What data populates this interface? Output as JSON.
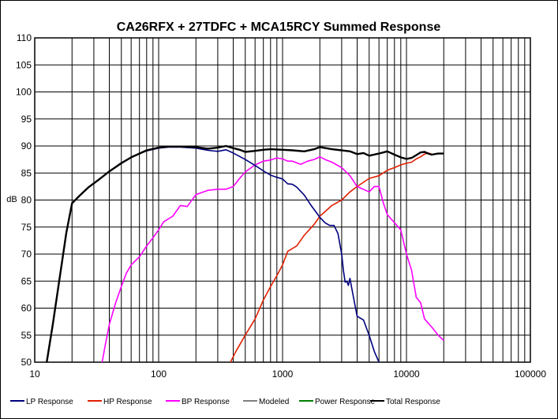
{
  "chart_data": {
    "type": "line",
    "title": "CA26RFX + 27TDFC + MCA15RCY  Summed Response",
    "xlabel": "",
    "ylabel": "dB",
    "xscale": "log",
    "xlim": [
      10,
      100000
    ],
    "ylim": [
      50,
      110
    ],
    "x_ticks": [
      10,
      100,
      1000,
      10000,
      100000
    ],
    "x_tick_labels": [
      "10",
      "100",
      "1000",
      "10000",
      "100000"
    ],
    "y_ticks": [
      50,
      55,
      60,
      65,
      70,
      75,
      80,
      85,
      90,
      95,
      100,
      105,
      110
    ],
    "grid": true,
    "legend_position": "bottom",
    "series": [
      {
        "name": "LP Response",
        "color": "#000080",
        "points": [
          [
            12.5,
            50
          ],
          [
            14,
            57
          ],
          [
            16,
            66
          ],
          [
            18,
            74
          ],
          [
            20,
            79.4
          ],
          [
            23,
            80.8
          ],
          [
            27,
            82.3
          ],
          [
            33,
            83.8
          ],
          [
            40,
            85.3
          ],
          [
            50,
            86.9
          ],
          [
            60,
            87.9
          ],
          [
            70,
            88.6
          ],
          [
            80,
            89.1
          ],
          [
            100,
            89.6
          ],
          [
            120,
            89.8
          ],
          [
            150,
            89.8
          ],
          [
            200,
            89.6
          ],
          [
            250,
            89.2
          ],
          [
            300,
            89.0
          ],
          [
            350,
            89.3
          ],
          [
            400,
            88.7
          ],
          [
            500,
            87.5
          ],
          [
            600,
            86.4
          ],
          [
            700,
            85.4
          ],
          [
            800,
            84.6
          ],
          [
            900,
            84.2
          ],
          [
            1000,
            83.9
          ],
          [
            1100,
            83.0
          ],
          [
            1200,
            82.9
          ],
          [
            1300,
            82.4
          ],
          [
            1500,
            80.9
          ],
          [
            1700,
            79.0
          ],
          [
            2000,
            76.8
          ],
          [
            2200,
            75.8
          ],
          [
            2400,
            75.3
          ],
          [
            2600,
            75.3
          ],
          [
            2800,
            73.8
          ],
          [
            3000,
            70.0
          ],
          [
            3100,
            67.0
          ],
          [
            3200,
            64.8
          ],
          [
            3300,
            65.0
          ],
          [
            3400,
            64.2
          ],
          [
            3500,
            65.5
          ],
          [
            3700,
            62.5
          ],
          [
            4000,
            58.5
          ],
          [
            4500,
            57.8
          ],
          [
            5000,
            55.0
          ],
          [
            5500,
            52.0
          ],
          [
            6000,
            50.0
          ]
        ]
      },
      {
        "name": "HP Response",
        "color": "#e02000",
        "points": [
          [
            380,
            50
          ],
          [
            420,
            52
          ],
          [
            500,
            55
          ],
          [
            600,
            58
          ],
          [
            700,
            61.5
          ],
          [
            800,
            64
          ],
          [
            900,
            66
          ],
          [
            1000,
            68
          ],
          [
            1100,
            70.5
          ],
          [
            1300,
            71.5
          ],
          [
            1500,
            73.5
          ],
          [
            1800,
            75.5
          ],
          [
            2000,
            77
          ],
          [
            2500,
            79
          ],
          [
            3000,
            80
          ],
          [
            3500,
            81.5
          ],
          [
            4000,
            82.5
          ],
          [
            5000,
            84
          ],
          [
            6000,
            84.5
          ],
          [
            7000,
            85.5
          ],
          [
            8000,
            86
          ],
          [
            9000,
            86.5
          ],
          [
            10000,
            86.8
          ],
          [
            11000,
            87
          ],
          [
            12000,
            87.6
          ],
          [
            13000,
            88
          ],
          [
            14000,
            88.5
          ],
          [
            15000,
            88.7
          ],
          [
            16000,
            88.5
          ]
        ]
      },
      {
        "name": "BP Response",
        "color": "#ff00ff",
        "points": [
          [
            35,
            50
          ],
          [
            37,
            53
          ],
          [
            40,
            57
          ],
          [
            45,
            61
          ],
          [
            50,
            64
          ],
          [
            55,
            66.5
          ],
          [
            60,
            68
          ],
          [
            70,
            69.5
          ],
          [
            80,
            71.5
          ],
          [
            90,
            73
          ],
          [
            100,
            74.5
          ],
          [
            110,
            76
          ],
          [
            130,
            77
          ],
          [
            150,
            79
          ],
          [
            170,
            78.8
          ],
          [
            200,
            81
          ],
          [
            250,
            81.8
          ],
          [
            300,
            82
          ],
          [
            350,
            82
          ],
          [
            400,
            82.5
          ],
          [
            450,
            84
          ],
          [
            500,
            85.2
          ],
          [
            600,
            86.5
          ],
          [
            700,
            87.2
          ],
          [
            800,
            87.4
          ],
          [
            900,
            87.8
          ],
          [
            1000,
            87.6
          ],
          [
            1100,
            87.2
          ],
          [
            1200,
            87.2
          ],
          [
            1400,
            86.6
          ],
          [
            1600,
            87.2
          ],
          [
            1800,
            87.5
          ],
          [
            2000,
            88
          ],
          [
            2200,
            87.5
          ],
          [
            2500,
            87.0
          ],
          [
            3000,
            86
          ],
          [
            3500,
            84.5
          ],
          [
            4000,
            82.5
          ],
          [
            5000,
            81.5
          ],
          [
            5500,
            82.5
          ],
          [
            6000,
            82.5
          ],
          [
            6500,
            79.5
          ],
          [
            7000,
            77.3
          ],
          [
            8000,
            75.8
          ],
          [
            9000,
            74.5
          ],
          [
            10000,
            70
          ],
          [
            11000,
            67
          ],
          [
            12000,
            62
          ],
          [
            13000,
            61
          ],
          [
            14000,
            58
          ],
          [
            16000,
            56.5
          ],
          [
            18000,
            55
          ],
          [
            20000,
            54
          ]
        ]
      },
      {
        "name": "Modeled",
        "color": "#808080",
        "points": []
      },
      {
        "name": "Power Response",
        "color": "#008000",
        "points": []
      },
      {
        "name": "Total Response",
        "color": "#000000",
        "points": [
          [
            12.5,
            50
          ],
          [
            14,
            57
          ],
          [
            16,
            66
          ],
          [
            18,
            74
          ],
          [
            20,
            79.4
          ],
          [
            23,
            80.8
          ],
          [
            27,
            82.3
          ],
          [
            33,
            83.8
          ],
          [
            40,
            85.3
          ],
          [
            50,
            86.8
          ],
          [
            60,
            87.9
          ],
          [
            70,
            88.6
          ],
          [
            80,
            89.2
          ],
          [
            100,
            89.7
          ],
          [
            120,
            89.9
          ],
          [
            150,
            89.9
          ],
          [
            200,
            89.8
          ],
          [
            250,
            89.5
          ],
          [
            300,
            89.7
          ],
          [
            350,
            90
          ],
          [
            400,
            89.6
          ],
          [
            450,
            89.3
          ],
          [
            500,
            88.9
          ],
          [
            600,
            89.1
          ],
          [
            700,
            89.3
          ],
          [
            800,
            89.4
          ],
          [
            1000,
            89.3
          ],
          [
            1200,
            89.2
          ],
          [
            1500,
            89
          ],
          [
            1800,
            89.4
          ],
          [
            2000,
            89.8
          ],
          [
            2500,
            89.4
          ],
          [
            3000,
            89.2
          ],
          [
            3500,
            89
          ],
          [
            4000,
            88.5
          ],
          [
            4500,
            88.7
          ],
          [
            5000,
            88.2
          ],
          [
            6000,
            88.6
          ],
          [
            7000,
            89
          ],
          [
            8000,
            88.4
          ],
          [
            9000,
            87.9
          ],
          [
            10000,
            87.6
          ],
          [
            11000,
            87.8
          ],
          [
            12000,
            88.3
          ],
          [
            13000,
            88.8
          ],
          [
            14000,
            88.9
          ],
          [
            15000,
            88.6
          ],
          [
            16000,
            88.4
          ],
          [
            18000,
            88.6
          ],
          [
            20000,
            88.6
          ]
        ]
      }
    ]
  }
}
